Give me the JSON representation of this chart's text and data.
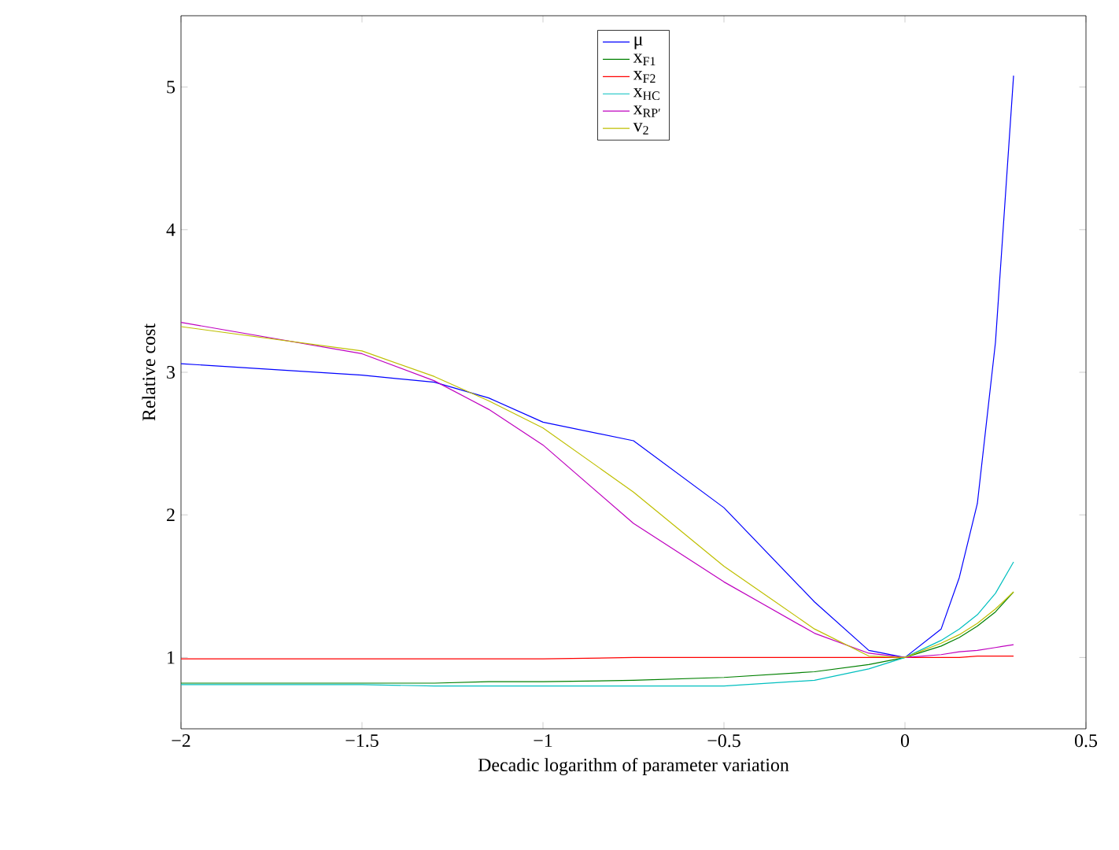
{
  "chart_data": {
    "type": "line",
    "xlabel": "Decadic logarithm of parameter variation",
    "ylabel": "Relative cost",
    "xlim": [
      -2,
      0.5
    ],
    "ylim": [
      0.5,
      5.5
    ],
    "xticks": [
      {
        "value": -2,
        "label": "−2"
      },
      {
        "value": -1.5,
        "label": "−1.5"
      },
      {
        "value": -1,
        "label": "−1"
      },
      {
        "value": -0.5,
        "label": "−0.5"
      },
      0,
      0.5
    ],
    "yticks": [
      1,
      2,
      3,
      4,
      5
    ],
    "legend": "top",
    "grid": false,
    "marker": "none",
    "line_style": "solid",
    "x": [
      -2,
      -1.5,
      -1.3,
      -1.15,
      -1,
      -0.75,
      -0.5,
      -0.25,
      -0.1,
      0,
      0.1,
      0.15,
      0.2,
      0.25,
      0.3
    ],
    "series": [
      {
        "name": "μ",
        "color": "#0000ff",
        "values": [
          3.06,
          2.98,
          2.93,
          2.82,
          2.65,
          2.52,
          2.05,
          1.39,
          1.05,
          1.0,
          1.2,
          1.56,
          2.08,
          3.21,
          5.08
        ]
      },
      {
        "name": "x$_{F1}$",
        "color": "#008000",
        "values": [
          0.82,
          0.82,
          0.82,
          0.83,
          0.83,
          0.84,
          0.86,
          0.9,
          0.95,
          1.0,
          1.08,
          1.14,
          1.22,
          1.32,
          1.46
        ]
      },
      {
        "name": "x$_{F2}$",
        "color": "#ff0000",
        "values": [
          0.99,
          0.99,
          0.99,
          0.99,
          0.99,
          1.0,
          1.0,
          1.0,
          1.0,
          1.0,
          1.0,
          1.0,
          1.01,
          1.01,
          1.01
        ]
      },
      {
        "name": "x$_{HC}$",
        "color": "#00bfbf",
        "values": [
          0.81,
          0.81,
          0.8,
          0.8,
          0.8,
          0.8,
          0.8,
          0.84,
          0.92,
          1.0,
          1.12,
          1.2,
          1.3,
          1.45,
          1.67
        ]
      },
      {
        "name": "x$_{RP′}$",
        "color": "#bf00bf",
        "values": [
          3.35,
          3.13,
          2.94,
          2.74,
          2.49,
          1.94,
          1.53,
          1.17,
          1.03,
          1.0,
          1.02,
          1.04,
          1.05,
          1.07,
          1.09
        ]
      },
      {
        "name": "v$_{2}$",
        "color": "#bfbf00",
        "values": [
          3.32,
          3.15,
          2.97,
          2.8,
          2.61,
          2.16,
          1.64,
          1.2,
          1.01,
          1.0,
          1.1,
          1.16,
          1.24,
          1.34,
          1.46
        ]
      }
    ]
  }
}
